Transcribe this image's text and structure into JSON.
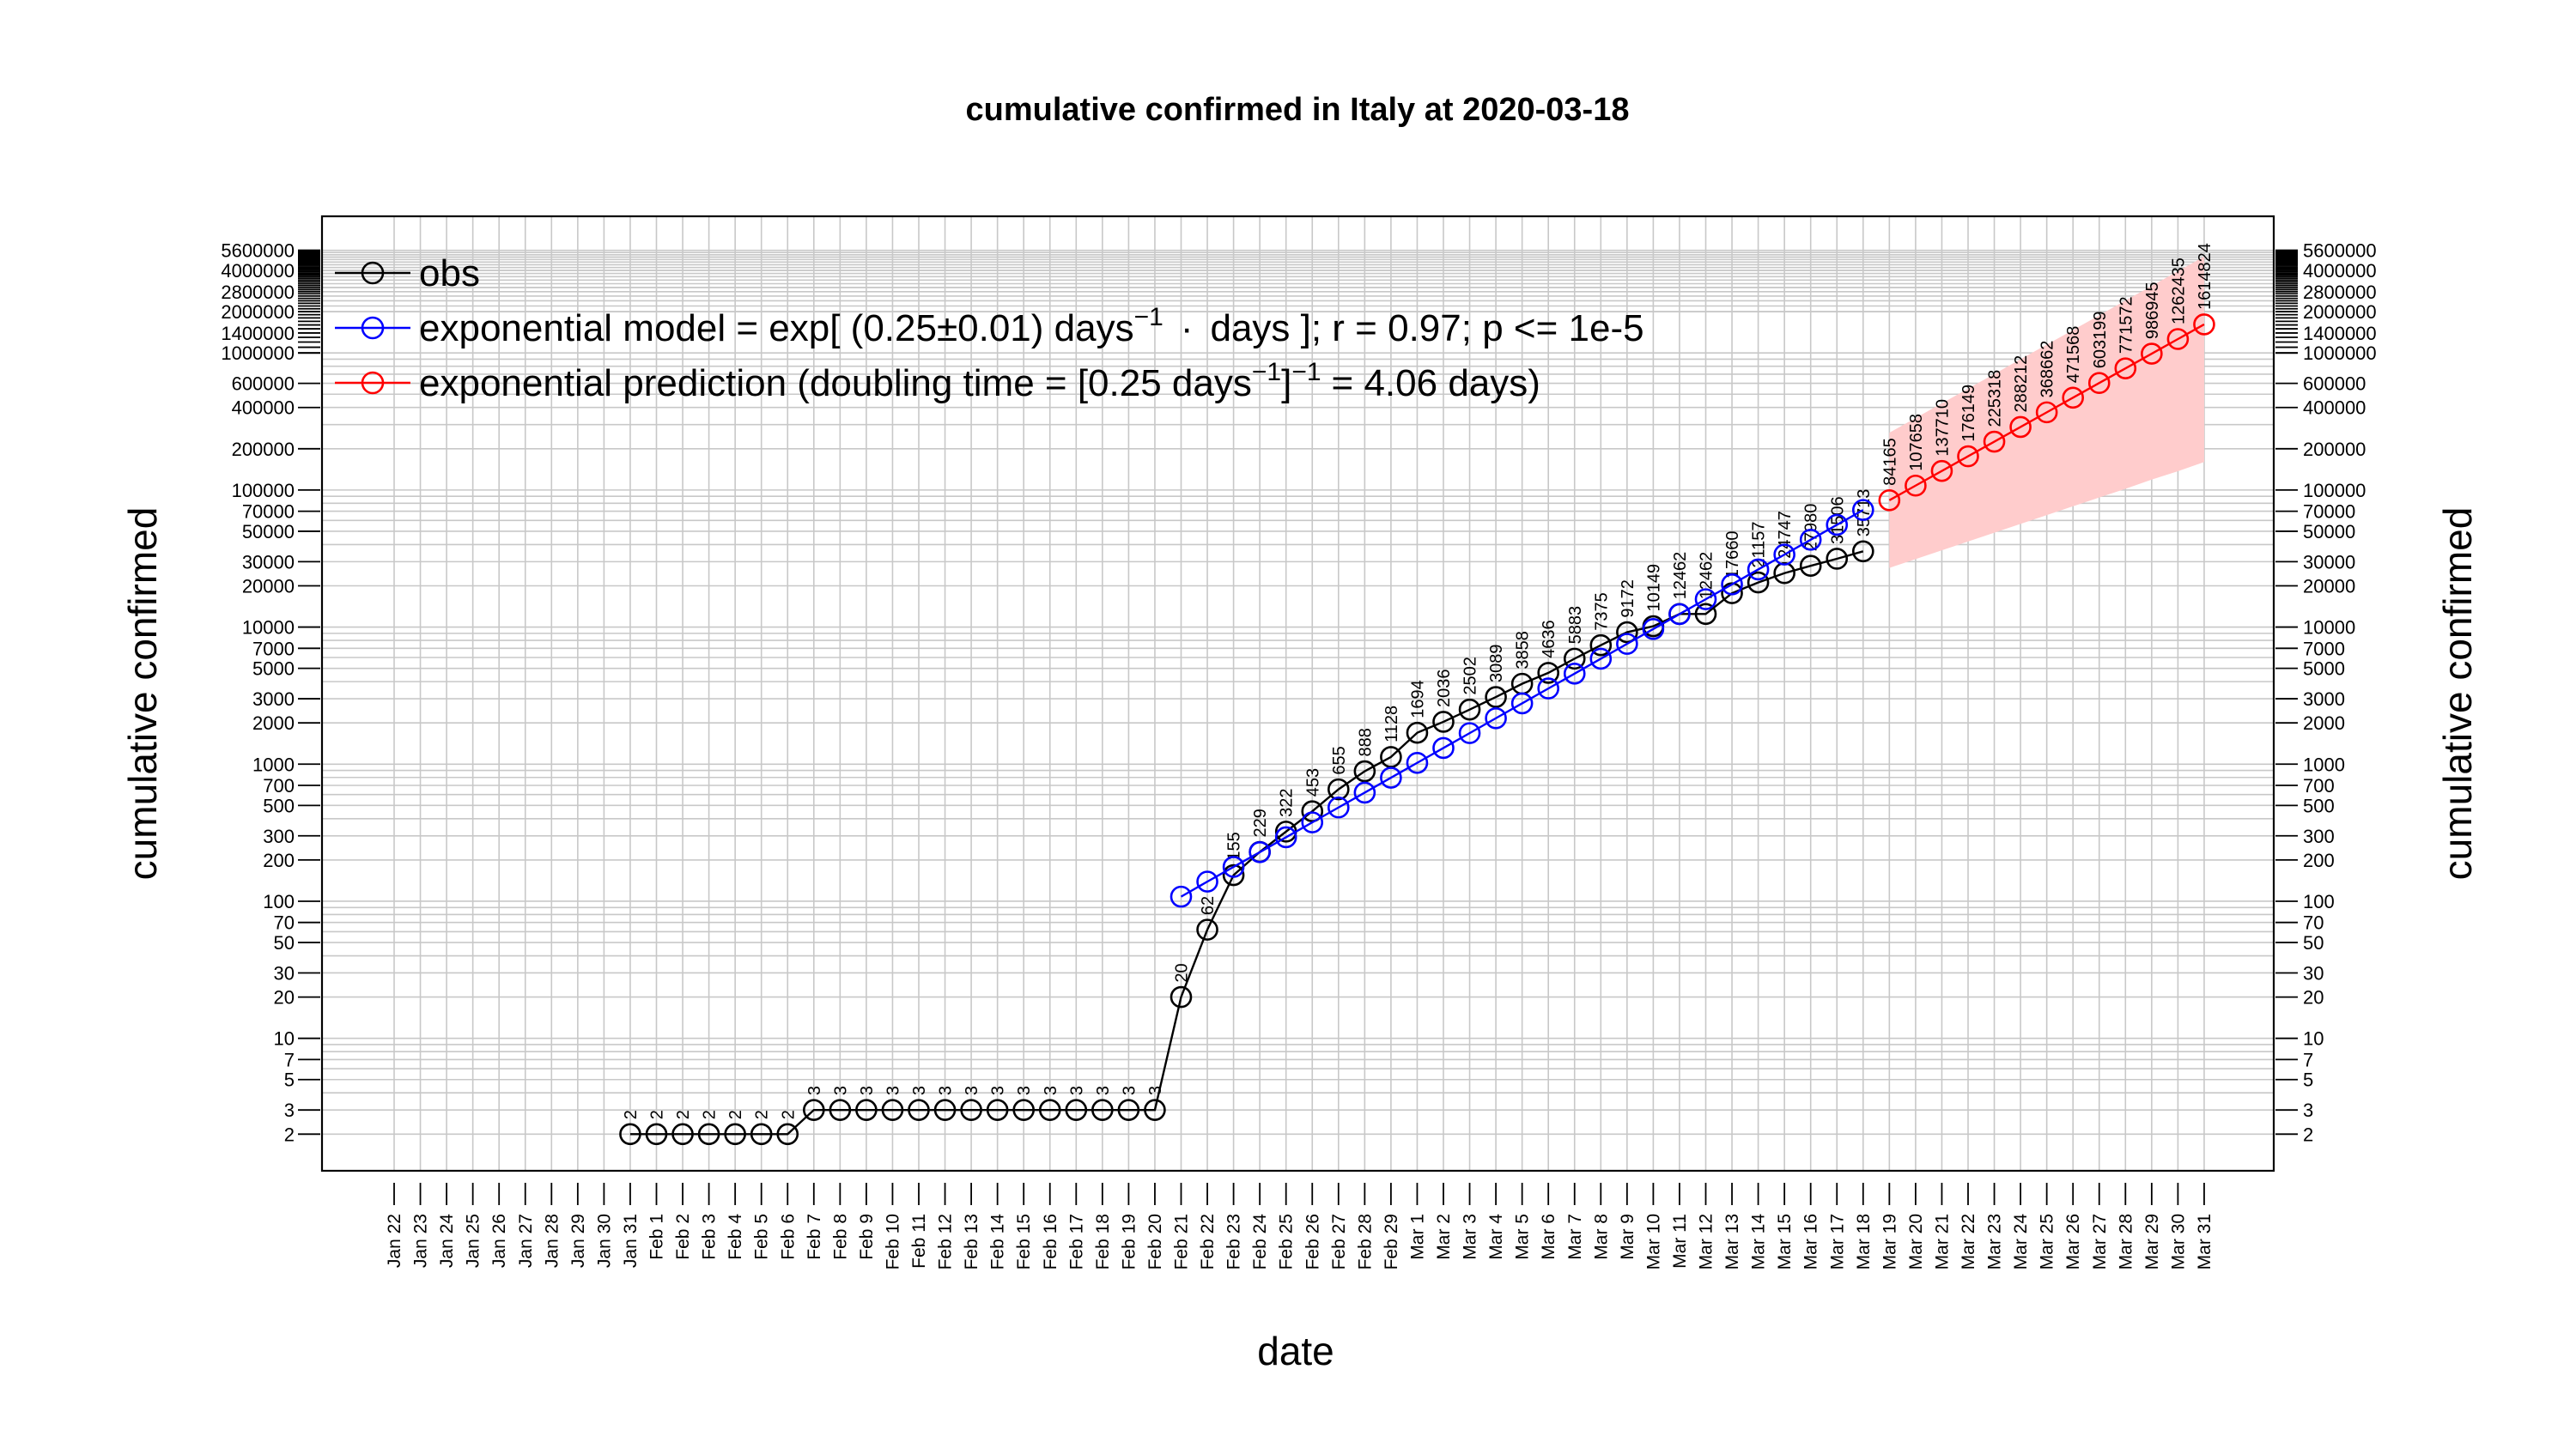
{
  "chart_data": {
    "type": "line",
    "title": "cumulative confirmed in Italy at 2020-03-18",
    "xlabel": "date",
    "ylabel": "cumulative confirmed",
    "y_scale": "log",
    "ylim": [
      1.5,
      5600000
    ],
    "grid": true,
    "legend_position": "top-left",
    "x_tick_labels": [
      "Jan 22",
      "Jan 23",
      "Jan 24",
      "Jan 25",
      "Jan 26",
      "Jan 27",
      "Jan 28",
      "Jan 29",
      "Jan 30",
      "Jan 31",
      "Feb 1",
      "Feb 2",
      "Feb 3",
      "Feb 4",
      "Feb 5",
      "Feb 6",
      "Feb 7",
      "Feb 8",
      "Feb 9",
      "Feb 10",
      "Feb 11",
      "Feb 12",
      "Feb 13",
      "Feb 14",
      "Feb 15",
      "Feb 16",
      "Feb 17",
      "Feb 18",
      "Feb 19",
      "Feb 20",
      "Feb 21",
      "Feb 22",
      "Feb 23",
      "Feb 24",
      "Feb 25",
      "Feb 26",
      "Feb 27",
      "Feb 28",
      "Feb 29",
      "Mar 1",
      "Mar 2",
      "Mar 3",
      "Mar 4",
      "Mar 5",
      "Mar 6",
      "Mar 7",
      "Mar 8",
      "Mar 9",
      "Mar 10",
      "Mar 11",
      "Mar 12",
      "Mar 13",
      "Mar 14",
      "Mar 15",
      "Mar 16",
      "Mar 17",
      "Mar 18",
      "Mar 19",
      "Mar 20",
      "Mar 21",
      "Mar 22",
      "Mar 23",
      "Mar 24",
      "Mar 25",
      "Mar 26",
      "Mar 27",
      "Mar 28",
      "Mar 29",
      "Mar 30",
      "Mar 31"
    ],
    "y_tick_labels": [
      "2",
      "3",
      "5",
      "7",
      "10",
      "20",
      "30",
      "50",
      "70",
      "100",
      "200",
      "300",
      "500",
      "700",
      "1000",
      "2000",
      "3000",
      "5000",
      "7000",
      "10000",
      "20000",
      "30000",
      "50000",
      "70000",
      "100000",
      "200000",
      "400000",
      "600000",
      "1000000",
      "1400000",
      "2000000",
      "2800000",
      "4000000",
      "5600000"
    ],
    "series": [
      {
        "name": "obs",
        "color": "#000000",
        "x": [
          "Jan 31",
          "Feb 1",
          "Feb 2",
          "Feb 3",
          "Feb 4",
          "Feb 5",
          "Feb 6",
          "Feb 7",
          "Feb 8",
          "Feb 9",
          "Feb 10",
          "Feb 11",
          "Feb 12",
          "Feb 13",
          "Feb 14",
          "Feb 15",
          "Feb 16",
          "Feb 17",
          "Feb 18",
          "Feb 19",
          "Feb 20",
          "Feb 21",
          "Feb 22",
          "Feb 23",
          "Feb 24",
          "Feb 25",
          "Feb 26",
          "Feb 27",
          "Feb 28",
          "Feb 29",
          "Mar 1",
          "Mar 2",
          "Mar 3",
          "Mar 4",
          "Mar 5",
          "Mar 6",
          "Mar 7",
          "Mar 8",
          "Mar 9",
          "Mar 10",
          "Mar 11",
          "Mar 12",
          "Mar 13",
          "Mar 14",
          "Mar 15",
          "Mar 16",
          "Mar 17",
          "Mar 18"
        ],
        "values": [
          2,
          2,
          2,
          2,
          2,
          2,
          2,
          3,
          3,
          3,
          3,
          3,
          3,
          3,
          3,
          3,
          3,
          3,
          3,
          3,
          3,
          20,
          62,
          155,
          229,
          322,
          453,
          655,
          888,
          1128,
          1694,
          2036,
          2502,
          3089,
          3858,
          4636,
          5883,
          7375,
          9172,
          10149,
          12462,
          12462,
          17660,
          21157,
          24747,
          27980,
          31506,
          35713
        ],
        "labels": [
          "2",
          "2",
          "2",
          "2",
          "2",
          "2",
          "2",
          "3",
          "3",
          "3",
          "3",
          "3",
          "3",
          "3",
          "3",
          "3",
          "3",
          "3",
          "3",
          "3",
          "3",
          "20",
          "62",
          "155",
          "229",
          "322",
          "453",
          "655",
          "888",
          "1128",
          "1694",
          "2036",
          "2502",
          "3089",
          "3858",
          "4636",
          "5883",
          "7375",
          "9172",
          "10149",
          "12462",
          "12462",
          "17660",
          "21157",
          "24747",
          "27980",
          "31506",
          "35713"
        ]
      },
      {
        "name": "exponential model",
        "color": "#0000ff",
        "x": [
          "Feb 21",
          "Feb 22",
          "Feb 23",
          "Feb 24",
          "Feb 25",
          "Feb 26",
          "Feb 27",
          "Feb 28",
          "Feb 29",
          "Mar 1",
          "Mar 2",
          "Mar 3",
          "Mar 4",
          "Mar 5",
          "Mar 6",
          "Mar 7",
          "Mar 8",
          "Mar 9",
          "Mar 10",
          "Mar 11",
          "Mar 12",
          "Mar 13",
          "Mar 14",
          "Mar 15",
          "Mar 16",
          "Mar 17",
          "Mar 18"
        ],
        "values": [
          108,
          139,
          178,
          228,
          293,
          376,
          483,
          620,
          796,
          1022,
          1312,
          1684,
          2163,
          2777,
          3565,
          4577,
          5876,
          7544,
          9686,
          12436,
          15966,
          20498,
          26317,
          33788,
          43380,
          55695,
          71505
        ]
      },
      {
        "name": "exponential prediction",
        "color": "#ff0000",
        "band_color": "#ffcccc",
        "x": [
          "Mar 19",
          "Mar 20",
          "Mar 21",
          "Mar 22",
          "Mar 23",
          "Mar 24",
          "Mar 25",
          "Mar 26",
          "Mar 27",
          "Mar 28",
          "Mar 29",
          "Mar 30",
          "Mar 31"
        ],
        "values": [
          84165,
          107658,
          137710,
          176149,
          225318,
          288212,
          368662,
          471568,
          603199,
          771572,
          986945,
          1262435,
          1614824
        ],
        "labels": [
          "84165",
          "107658",
          "137710",
          "176149",
          "225318",
          "288212",
          "368662",
          "471568",
          "603199",
          "771572",
          "986945",
          "1262435",
          "1614824"
        ],
        "band_lower": [
          27000,
          31300,
          36300,
          42100,
          48800,
          56600,
          65600,
          76100,
          88200,
          102000,
          119000,
          137000,
          160000
        ],
        "band_upper": [
          262000,
          335000,
          429000,
          549000,
          702000,
          899000,
          1150000,
          1470000,
          1880000,
          2410000,
          3080000,
          3950000,
          5050000
        ]
      }
    ],
    "legend": {
      "obs": "obs",
      "model_pre": "exponential model = exp[ (0.25",
      "model_pm": "±",
      "model_mid": "0.01) days",
      "model_sup": "−1",
      "model_dot": "·",
      "model_post": "days ]; r = 0.97; p <= 1e-5",
      "pred_pre": "exponential prediction (doubling time = [0.25 days",
      "pred_sup1": "−1",
      "pred_mid": "]",
      "pred_sup2": "−1",
      "pred_post": "= 4.06 days)"
    }
  }
}
